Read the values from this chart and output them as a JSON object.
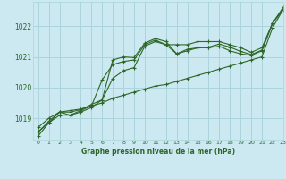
{
  "title": "Graphe pression niveau de la mer (hPa)",
  "background_color": "#cce8f0",
  "grid_color": "#aad4dc",
  "line_color": "#2d6628",
  "xlim": [
    -0.5,
    23
  ],
  "ylim": [
    1018.3,
    1022.8
  ],
  "yticks": [
    1019,
    1020,
    1021,
    1022
  ],
  "xticks": [
    0,
    1,
    2,
    3,
    4,
    5,
    6,
    7,
    8,
    9,
    10,
    11,
    12,
    13,
    14,
    15,
    16,
    17,
    18,
    19,
    20,
    21,
    22,
    23
  ],
  "series": [
    [
      1018.55,
      1018.9,
      1019.2,
      1019.25,
      1019.3,
      1019.4,
      1019.5,
      1019.65,
      1019.75,
      1019.85,
      1019.95,
      1020.05,
      1020.1,
      1020.2,
      1020.3,
      1020.4,
      1020.5,
      1020.6,
      1020.7,
      1020.8,
      1020.9,
      1021.0,
      1021.95,
      1022.55
    ],
    [
      1018.7,
      1019.0,
      1019.2,
      1019.1,
      1019.2,
      1019.35,
      1019.6,
      1020.3,
      1020.55,
      1020.65,
      1021.35,
      1021.5,
      1021.4,
      1021.1,
      1021.25,
      1021.3,
      1021.3,
      1021.35,
      1021.2,
      1021.1,
      1021.05,
      1021.2,
      1022.1,
      1022.55
    ],
    [
      1018.42,
      1018.85,
      1019.1,
      1019.1,
      1019.25,
      1019.4,
      1020.25,
      1020.75,
      1020.85,
      1020.9,
      1021.4,
      1021.55,
      1021.4,
      1021.4,
      1021.4,
      1021.5,
      1021.5,
      1021.5,
      1021.4,
      1021.3,
      1021.15,
      1021.3,
      1022.1,
      1022.62
    ],
    [
      1018.55,
      1018.85,
      1019.2,
      1019.2,
      1019.28,
      1019.45,
      1019.6,
      1020.9,
      1021.0,
      1020.98,
      1021.45,
      1021.6,
      1021.5,
      1021.1,
      1021.2,
      1021.3,
      1021.32,
      1021.42,
      1021.32,
      1021.18,
      1021.08,
      1021.22,
      1022.1,
      1022.57
    ]
  ]
}
